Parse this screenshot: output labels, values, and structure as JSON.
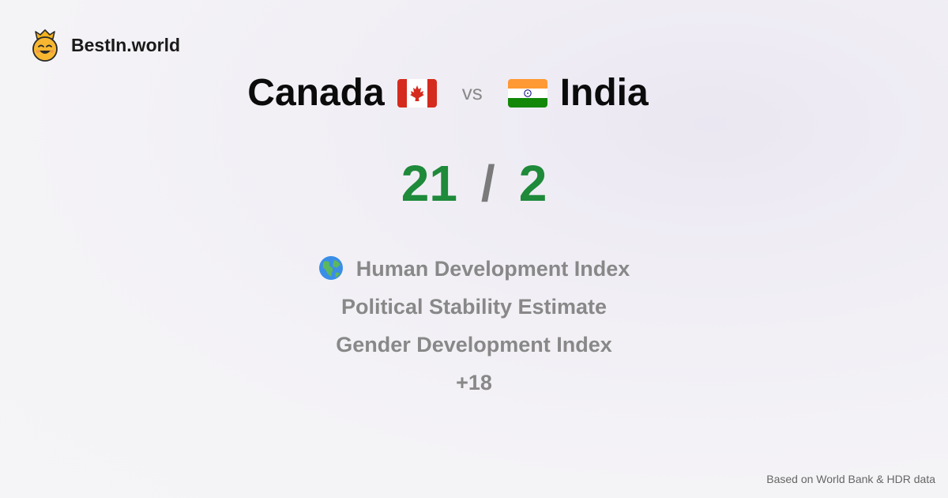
{
  "brand": {
    "name": "BestIn.world",
    "logo_icon": "crowned-smiley-icon"
  },
  "comparison": {
    "left_country": "Canada",
    "left_flag": "canada-flag-icon",
    "vs_label": "vs",
    "right_country": "India",
    "right_flag": "india-flag-icon"
  },
  "scores": {
    "left": "21",
    "separator": "/",
    "right": "2",
    "color": "#1e8a3a"
  },
  "metrics": {
    "items": [
      {
        "label": "Human Development Index",
        "icon": "globe-icon"
      },
      {
        "label": "Political Stability Estimate"
      },
      {
        "label": "Gender Development Index"
      }
    ],
    "more": "+18"
  },
  "footer": {
    "source": "Based on World Bank & HDR data"
  }
}
